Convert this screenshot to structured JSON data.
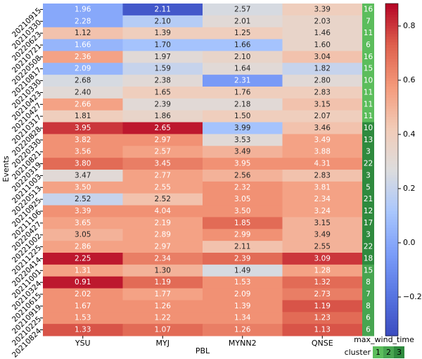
{
  "chart_data": {
    "type": "heatmap",
    "x_label": "PBL",
    "y_label": "Events",
    "colormap": "coolwarm",
    "categories": [
      "YSU",
      "MYJ",
      "MYNN2",
      "QNSE"
    ],
    "rows": [
      "20210915",
      "20210330",
      "20220623",
      "20210721",
      "20220508",
      "20210817",
      "20210330",
      "20210423",
      "20210427",
      "20210317",
      "20220828",
      "20220330",
      "20210821",
      "20220319",
      "20211003",
      "20220513",
      "20210925",
      "20211106",
      "20220427",
      "20221002",
      "20211225",
      "20220414",
      "20211001",
      "20210324",
      "20210615",
      "20210919",
      "20210225",
      "20210824"
    ],
    "values": [
      [
        0.0,
        -0.3,
        0.25,
        0.4
      ],
      [
        0.0,
        0.15,
        0.3,
        0.35
      ],
      [
        0.45,
        0.4,
        0.4,
        0.35
      ],
      [
        0.05,
        0.1,
        0.1,
        0.35
      ],
      [
        0.55,
        0.3,
        0.35,
        0.45
      ],
      [
        0.05,
        0.2,
        0.3,
        0.2
      ],
      [
        0.25,
        0.3,
        -0.05,
        0.3
      ],
      [
        0.3,
        0.4,
        0.4,
        0.4
      ],
      [
        0.55,
        0.3,
        0.3,
        0.45
      ],
      [
        0.4,
        0.35,
        0.4,
        0.4
      ],
      [
        0.8,
        0.85,
        0.1,
        0.45
      ],
      [
        0.6,
        0.6,
        0.3,
        0.55
      ],
      [
        0.6,
        0.55,
        0.5,
        0.55
      ],
      [
        0.7,
        0.65,
        0.6,
        0.6
      ],
      [
        0.3,
        0.55,
        0.5,
        0.45
      ],
      [
        0.55,
        0.55,
        0.6,
        0.55
      ],
      [
        0.2,
        0.45,
        0.6,
        0.55
      ],
      [
        0.6,
        0.6,
        0.6,
        0.55
      ],
      [
        0.55,
        0.55,
        0.7,
        0.5
      ],
      [
        0.5,
        0.55,
        0.6,
        0.5
      ],
      [
        0.55,
        0.55,
        0.45,
        0.5
      ],
      [
        0.85,
        0.65,
        0.7,
        0.8
      ],
      [
        0.55,
        0.5,
        0.25,
        0.55
      ],
      [
        0.85,
        0.7,
        0.6,
        0.7
      ],
      [
        0.6,
        0.55,
        0.6,
        0.65
      ],
      [
        0.6,
        0.6,
        0.6,
        0.75
      ],
      [
        0.6,
        0.6,
        0.6,
        0.7
      ],
      [
        0.75,
        0.7,
        0.65,
        0.75
      ]
    ],
    "annotations": [
      [
        "1.96",
        "2.11",
        "2.57",
        "3.39"
      ],
      [
        "2.28",
        "2.10",
        "2.01",
        "2.03"
      ],
      [
        "1.12",
        "1.39",
        "1.25",
        "1.46"
      ],
      [
        "1.66",
        "1.70",
        "1.66",
        "1.60"
      ],
      [
        "2.36",
        "1.97",
        "2.10",
        "3.04"
      ],
      [
        "2.09",
        "1.59",
        "1.64",
        "1.82"
      ],
      [
        "2.68",
        "2.38",
        "2.31",
        "2.80"
      ],
      [
        "2.40",
        "1.65",
        "1.76",
        "2.83"
      ],
      [
        "2.66",
        "2.39",
        "2.18",
        "3.15"
      ],
      [
        "1.81",
        "1.86",
        "1.50",
        "2.07"
      ],
      [
        "3.95",
        "2.65",
        "3.99",
        "3.46"
      ],
      [
        "3.82",
        "2.97",
        "3.53",
        "3.49"
      ],
      [
        "3.56",
        "2.57",
        "3.49",
        "3.88"
      ],
      [
        "3.80",
        "3.45",
        "3.95",
        "4.31"
      ],
      [
        "3.47",
        "2.77",
        "2.56",
        "2.83"
      ],
      [
        "3.50",
        "2.55",
        "2.32",
        "3.81"
      ],
      [
        "2.52",
        "2.52",
        "3.05",
        "2.34"
      ],
      [
        "3.39",
        "4.04",
        "3.50",
        "3.24"
      ],
      [
        "3.65",
        "2.19",
        "1.85",
        "3.15"
      ],
      [
        "3.05",
        "2.89",
        "2.99",
        "3.49"
      ],
      [
        "2.86",
        "2.97",
        "2.11",
        "2.55"
      ],
      [
        "2.25",
        "2.34",
        "2.39",
        "3.09"
      ],
      [
        "1.31",
        "1.30",
        "1.49",
        "1.28"
      ],
      [
        "0.91",
        "1.19",
        "1.53",
        "1.32"
      ],
      [
        "2.02",
        "1.77",
        "2.09",
        "2.73"
      ],
      [
        "1.67",
        "1.26",
        "1.39",
        "1.19"
      ],
      [
        "1.53",
        "1.22",
        "1.34",
        "1.23"
      ],
      [
        "1.33",
        "1.07",
        "1.26",
        "1.13"
      ]
    ],
    "zlim": [
      -0.343,
      0.883
    ],
    "zticks": [
      {
        "value": -0.2,
        "label": "−0.2"
      },
      {
        "value": 0,
        "label": "0.0"
      },
      {
        "value": 0.2,
        "label": "0.2"
      },
      {
        "value": 0.4,
        "label": "0.4"
      },
      {
        "value": 0.6,
        "label": "0.6"
      },
      {
        "value": 0.8,
        "label": "0.8"
      }
    ],
    "side_column": {
      "title": "max_wind_time",
      "values": [
        16,
        7,
        11,
        6,
        16,
        15,
        10,
        11,
        11,
        11,
        10,
        13,
        3,
        22,
        3,
        5,
        21,
        12,
        17,
        3,
        22,
        18,
        15,
        8,
        7,
        8,
        6,
        6
      ],
      "cluster": [
        1,
        1,
        1,
        1,
        1,
        1,
        1,
        1,
        1,
        1,
        3,
        3,
        3,
        3,
        3,
        3,
        3,
        3,
        3,
        3,
        3,
        3,
        2,
        2,
        2,
        2,
        2,
        2
      ]
    },
    "legend": {
      "title": "cluster",
      "labels": [
        "1",
        "2",
        "3"
      ],
      "colors": [
        "#5cbd5c",
        "#47a550",
        "#2f8a3e"
      ]
    }
  }
}
